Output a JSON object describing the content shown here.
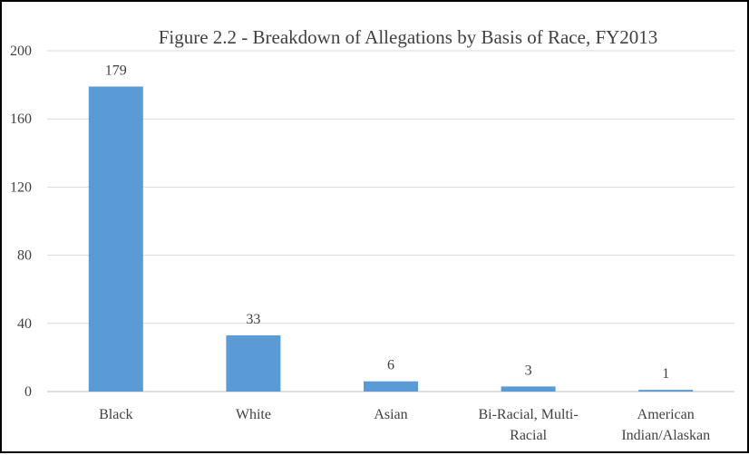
{
  "chart_data": {
    "type": "bar",
    "title": "Figure 2.2 - Breakdown of Allegations by Basis of Race, FY2013",
    "xlabel": "",
    "ylabel": "",
    "categories": [
      [
        "Black"
      ],
      [
        "White"
      ],
      [
        "Asian"
      ],
      [
        "Bi-Racial, Multi-",
        "Racial"
      ],
      [
        "American",
        "Indian/Alaskan"
      ]
    ],
    "values": [
      179,
      33,
      6,
      3,
      1
    ],
    "ylim": [
      0,
      200
    ],
    "yticks": [
      0,
      40,
      80,
      120,
      160,
      200
    ],
    "grid": true,
    "legend": "none",
    "bar_color": "#5b9bd5",
    "grid_color": "#d9d9d9"
  }
}
